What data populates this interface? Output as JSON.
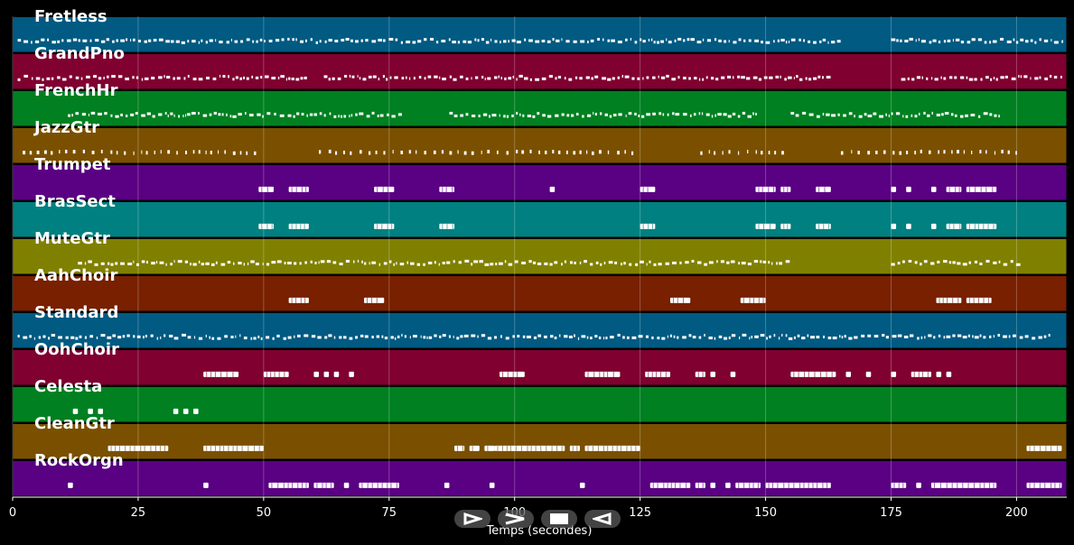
{
  "chart_data": {
    "type": "piano-roll",
    "xlabel": "Temps (secondes)",
    "xlim": [
      0,
      210
    ],
    "xticks": [
      0,
      25,
      50,
      75,
      100,
      125,
      150,
      175,
      200
    ],
    "grid": true,
    "tracks": [
      {
        "name": "Fretless",
        "color": "#005a82",
        "kind": "dense",
        "segments": [
          [
            1,
            165
          ],
          [
            175,
            209
          ]
        ]
      },
      {
        "name": "GrandPno",
        "color": "#800030",
        "kind": "dense",
        "segments": [
          [
            1,
            59
          ],
          [
            62,
            163
          ],
          [
            177,
            209
          ]
        ]
      },
      {
        "name": "FrenchHr",
        "color": "#008020",
        "kind": "dense",
        "segments": [
          [
            11,
            77
          ],
          [
            87,
            148
          ],
          [
            155,
            197
          ]
        ]
      },
      {
        "name": "JazzGtr",
        "color": "#7a5000",
        "kind": "sparse",
        "segments": [
          [
            2,
            49
          ],
          [
            61,
            124
          ],
          [
            137,
            154
          ],
          [
            165,
            201
          ]
        ]
      },
      {
        "name": "Trumpet",
        "color": "#5a0082",
        "kind": "blocks",
        "notes": [
          [
            49,
            52
          ],
          [
            55,
            59
          ],
          [
            72,
            76
          ],
          [
            85,
            88
          ],
          [
            107,
            108
          ],
          [
            125,
            128
          ],
          [
            148,
            152
          ],
          [
            153,
            155
          ],
          [
            160,
            163
          ],
          [
            175,
            176
          ],
          [
            178,
            179
          ],
          [
            183,
            184
          ],
          [
            186,
            189
          ],
          [
            190,
            196
          ]
        ]
      },
      {
        "name": "BrasSect",
        "color": "#008080",
        "kind": "blocks",
        "notes": [
          [
            49,
            52
          ],
          [
            55,
            59
          ],
          [
            72,
            76
          ],
          [
            85,
            88
          ],
          [
            125,
            128
          ],
          [
            148,
            152
          ],
          [
            153,
            155
          ],
          [
            160,
            163
          ],
          [
            175,
            176
          ],
          [
            178,
            179
          ],
          [
            183,
            184
          ],
          [
            186,
            189
          ],
          [
            190,
            196
          ]
        ]
      },
      {
        "name": "MuteGtr",
        "color": "#808000",
        "kind": "dense",
        "segments": [
          [
            13,
            155
          ],
          [
            175,
            201
          ]
        ]
      },
      {
        "name": "AahChoir",
        "color": "#782000",
        "kind": "blocks",
        "notes": [
          [
            55,
            59
          ],
          [
            70,
            74
          ],
          [
            131,
            135
          ],
          [
            145,
            150
          ],
          [
            184,
            189
          ],
          [
            190,
            195
          ]
        ]
      },
      {
        "name": "Standard",
        "color": "#005a82",
        "kind": "dense",
        "segments": [
          [
            1,
            207
          ]
        ]
      },
      {
        "name": "OohChoir",
        "color": "#800030",
        "kind": "blocks",
        "notes": [
          [
            38,
            45
          ],
          [
            50,
            55
          ],
          [
            60,
            61
          ],
          [
            62,
            63
          ],
          [
            64,
            65
          ],
          [
            67,
            68
          ],
          [
            97,
            102
          ],
          [
            114,
            121
          ],
          [
            126,
            131
          ],
          [
            136,
            138
          ],
          [
            139,
            140
          ],
          [
            143,
            144
          ],
          [
            155,
            164
          ],
          [
            166,
            167
          ],
          [
            170,
            171
          ],
          [
            175,
            176
          ],
          [
            179,
            183
          ],
          [
            184,
            185
          ],
          [
            186,
            187
          ]
        ]
      },
      {
        "name": "Celesta",
        "color": "#008020",
        "kind": "blocks",
        "notes": [
          [
            12,
            13
          ],
          [
            15,
            16
          ],
          [
            17,
            18
          ],
          [
            32,
            33
          ],
          [
            34,
            35
          ],
          [
            36,
            37
          ]
        ]
      },
      {
        "name": "CleanGtr",
        "color": "#7a5000",
        "kind": "blocks",
        "notes": [
          [
            19,
            31
          ],
          [
            38,
            50
          ],
          [
            88,
            90
          ],
          [
            91,
            93
          ],
          [
            94,
            96
          ],
          [
            96,
            110
          ],
          [
            111,
            113
          ],
          [
            114,
            116
          ],
          [
            115,
            125
          ],
          [
            202,
            209
          ]
        ]
      },
      {
        "name": "RockOrgn",
        "color": "#5a0082",
        "kind": "blocks",
        "notes": [
          [
            11,
            12
          ],
          [
            38,
            39
          ],
          [
            51,
            59
          ],
          [
            60,
            64
          ],
          [
            66,
            67
          ],
          [
            69,
            77
          ],
          [
            86,
            87
          ],
          [
            95,
            96
          ],
          [
            113,
            114
          ],
          [
            127,
            135
          ],
          [
            136,
            138
          ],
          [
            139,
            140
          ],
          [
            142,
            143
          ],
          [
            144,
            149
          ],
          [
            150,
            163
          ],
          [
            175,
            178
          ],
          [
            180,
            181
          ],
          [
            183,
            196
          ],
          [
            202,
            209
          ]
        ]
      }
    ]
  }
}
